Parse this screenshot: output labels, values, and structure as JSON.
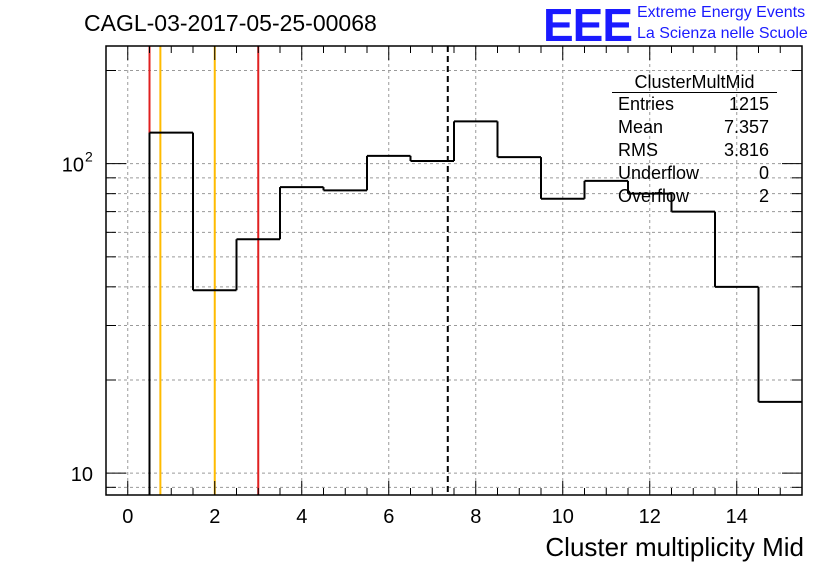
{
  "title": "CAGL-03-2017-05-25-00068",
  "logo": {
    "text": "EEE",
    "line1": "Extreme Energy Events",
    "line2": "La Scienza nelle Scuole",
    "color": "#1a1aff"
  },
  "stats": {
    "title": "ClusterMultMid",
    "rows": [
      {
        "label": "Entries",
        "value": "1215"
      },
      {
        "label": "Mean",
        "value": "7.357"
      },
      {
        "label": "RMS",
        "value": "3.816"
      },
      {
        "label": "Underflow",
        "value": "0"
      },
      {
        "label": "Overflow",
        "value": "2"
      }
    ]
  },
  "chart_data": {
    "type": "histogram",
    "title": "CAGL-03-2017-05-25-00068",
    "xlabel": "Cluster multiplicity Mid",
    "ylabel": "",
    "xlim": [
      -0.5,
      15.5
    ],
    "ylim": [
      8.5,
      240
    ],
    "yscale": "log",
    "grid": true,
    "x_ticks": [
      0,
      2,
      4,
      6,
      8,
      10,
      12,
      14
    ],
    "y_tick_labels": [
      {
        "value": 10,
        "label": "10"
      },
      {
        "value": 100,
        "label": "10",
        "exponent": "2"
      }
    ],
    "bin_edges": [
      0.5,
      1.5,
      2.5,
      3.5,
      4.5,
      5.5,
      6.5,
      7.5,
      8.5,
      9.5,
      10.5,
      11.5,
      12.5,
      13.5,
      14.5,
      15.5
    ],
    "counts": [
      126,
      39,
      57,
      84,
      82,
      106,
      102,
      137,
      105,
      77,
      88,
      80,
      70,
      40,
      17
    ],
    "vertical_lines": [
      {
        "x": 0.5,
        "color": "#e02020",
        "style": "solid"
      },
      {
        "x": 0.75,
        "color": "#ffbb00",
        "style": "solid"
      },
      {
        "x": 2.0,
        "color": "#ffbb00",
        "style": "solid"
      },
      {
        "x": 3.0,
        "color": "#e02020",
        "style": "solid"
      },
      {
        "x": 7.357,
        "color": "#000000",
        "style": "dashed"
      }
    ]
  }
}
